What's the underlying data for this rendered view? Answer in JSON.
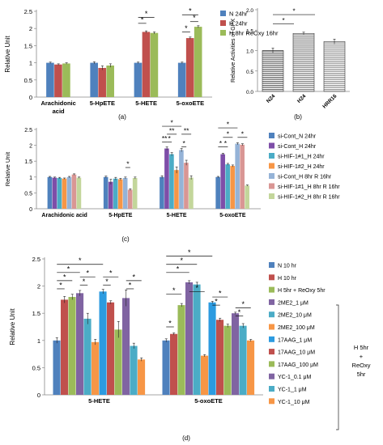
{
  "chart_data": [
    {
      "panel": "(a)",
      "type": "bar",
      "ylabel": "Relative Unit",
      "ylim": [
        0,
        2.5
      ],
      "yticks": [
        0,
        0.5,
        1,
        1.5,
        2,
        2.5
      ],
      "categories": [
        "Arachidonic acid",
        "5-HpETE",
        "5-HETE",
        "5-oxoETE"
      ],
      "series": [
        {
          "name": "N 24hr",
          "color": "#4F81BD",
          "values": [
            1.0,
            1.0,
            1.0,
            1.0
          ],
          "errors": [
            0.02,
            0.03,
            0.02,
            0.02
          ]
        },
        {
          "name": "H 24hr",
          "color": "#C0504D",
          "values": [
            0.95,
            0.85,
            1.9,
            1.72
          ],
          "errors": [
            0.02,
            0.06,
            0.03,
            0.03
          ]
        },
        {
          "name": "H 8hr ReOxy 16hr",
          "color": "#9BBB59",
          "values": [
            0.98,
            0.92,
            1.87,
            2.05
          ],
          "errors": [
            0.02,
            0.05,
            0.03,
            0.03
          ]
        }
      ],
      "legend": "right",
      "annotations": [
        {
          "label": "*",
          "category": 2,
          "from": 0,
          "to": 1,
          "level": 2.15
        },
        {
          "label": "*",
          "category": 2,
          "from": 0,
          "to": 2,
          "level": 2.32
        },
        {
          "label": "*",
          "category": 3,
          "from": 0,
          "to": 1,
          "level": 1.9
        },
        {
          "label": "*",
          "category": 3,
          "from": 1,
          "to": 2,
          "level": 2.2
        },
        {
          "label": "*",
          "category": 3,
          "from": 0,
          "to": 2,
          "level": 2.4
        }
      ]
    },
    {
      "panel": "(b)",
      "type": "bar",
      "ylabel": "Relative Activities of GPX",
      "ylim": [
        0,
        2.0
      ],
      "yticks": [
        0.0,
        0.5,
        1.0,
        1.5,
        2.0
      ],
      "categories": [
        "N24",
        "H24",
        "HRR16"
      ],
      "values": [
        1.0,
        1.42,
        1.22
      ],
      "errors": [
        0.06,
        0.03,
        0.06
      ],
      "annotations": [
        {
          "label": "*",
          "from": 0,
          "to": 1,
          "level": 1.65
        },
        {
          "label": "*",
          "from": 0,
          "to": 2,
          "level": 1.88
        }
      ]
    },
    {
      "panel": "(c)",
      "type": "bar",
      "ylabel": "Relative Unit",
      "ylim": [
        0,
        2.5
      ],
      "yticks": [
        0,
        0.5,
        1,
        1.5,
        2,
        2.5
      ],
      "categories": [
        "Arachidonic acid",
        "5-HpETE",
        "5-HETE",
        "5-oxoETE"
      ],
      "series": [
        {
          "name": "si-Cont_N 24hr",
          "color": "#4F81BD",
          "values": [
            1.0,
            1.0,
            1.0,
            1.0
          ],
          "errors": [
            0.02,
            0.03,
            0.04,
            0.02
          ]
        },
        {
          "name": "si-Cont_H 24hr",
          "color": "#7E4EA8",
          "values": [
            0.98,
            0.85,
            1.9,
            1.72
          ],
          "errors": [
            0.02,
            0.08,
            0.05,
            0.03
          ]
        },
        {
          "name": "si-HIF-1#1_H 24hr",
          "color": "#4BACC6",
          "values": [
            0.97,
            0.95,
            1.72,
            1.4
          ],
          "errors": [
            0.02,
            0.04,
            0.05,
            0.03
          ]
        },
        {
          "name": "si-HIF-1#2_H 24hr",
          "color": "#F79646",
          "values": [
            0.95,
            0.93,
            1.22,
            1.35
          ],
          "errors": [
            0.02,
            0.03,
            0.1,
            0.03
          ]
        },
        {
          "name": "si-Cont_H 8hr R 16hr",
          "color": "#95B3D7",
          "values": [
            1.0,
            0.97,
            1.85,
            2.05
          ],
          "errors": [
            0.02,
            0.03,
            0.05,
            0.03
          ]
        },
        {
          "name": "si-HIF-1#1_H 8hr R 16hr",
          "color": "#D99694",
          "values": [
            1.08,
            0.6,
            1.45,
            2.02
          ],
          "errors": [
            0.02,
            0.03,
            0.08,
            0.03
          ]
        },
        {
          "name": "si-HIF-1#2_H 8hr R 16hr",
          "color": "#C3D69B",
          "values": [
            0.98,
            0.97,
            0.98,
            0.73
          ],
          "errors": [
            0.02,
            0.03,
            0.06,
            0.02
          ]
        }
      ],
      "legend": "right",
      "annotations": [
        {
          "label": "*",
          "category": 1,
          "from": 4,
          "to": 5,
          "level": 1.3
        },
        {
          "label": "**",
          "category": 2,
          "from": 0,
          "to": 1,
          "level": 2.1
        },
        {
          "label": "*",
          "category": 2,
          "from": 1,
          "to": 2,
          "level": 2.1
        },
        {
          "label": "**",
          "category": 2,
          "from": 1,
          "to": 3,
          "level": 2.35
        },
        {
          "label": "*",
          "category": 2,
          "from": 4,
          "to": 5,
          "level": 1.95
        },
        {
          "label": "**",
          "category": 2,
          "from": 4,
          "to": 6,
          "level": 2.35
        },
        {
          "label": "*",
          "category": 2,
          "from": 0,
          "to": 4,
          "level": 2.6
        },
        {
          "label": "*",
          "category": 3,
          "from": 0,
          "to": 1,
          "level": 1.95
        },
        {
          "label": "*",
          "category": 3,
          "from": 1,
          "to": 2,
          "level": 1.95
        },
        {
          "label": "*",
          "category": 3,
          "from": 1,
          "to": 3,
          "level": 2.25
        },
        {
          "label": "*",
          "category": 3,
          "from": 4,
          "to": 6,
          "level": 2.25
        },
        {
          "label": "*",
          "category": 3,
          "from": 0,
          "to": 4,
          "level": 2.55
        }
      ]
    },
    {
      "panel": "(d)",
      "type": "bar",
      "ylabel": "Relative Unit",
      "ylim": [
        0,
        2.5
      ],
      "yticks": [
        0,
        0.5,
        1,
        1.5,
        2,
        2.5
      ],
      "categories": [
        "5-HETE",
        "5-oxoETE"
      ],
      "series": [
        {
          "name": "N 10 hr",
          "color": "#4F81BD",
          "values": [
            1.0,
            1.0
          ],
          "errors": [
            0.05,
            0.03
          ]
        },
        {
          "name": "H 10 hr",
          "color": "#C0504D",
          "values": [
            1.75,
            1.12
          ],
          "errors": [
            0.06,
            0.02
          ]
        },
        {
          "name": "H 5hr + ReOxy 5hr",
          "color": "#9BBB59",
          "values": [
            1.8,
            1.65
          ],
          "errors": [
            0.05,
            0.03
          ]
        },
        {
          "name": "2ME2_1 μM",
          "color": "#8064A2",
          "values": [
            1.87,
            2.07
          ],
          "errors": [
            0.05,
            0.03
          ]
        },
        {
          "name": "2ME2_10 μM",
          "color": "#4BACC6",
          "values": [
            1.4,
            2.03
          ],
          "errors": [
            0.1,
            0.04
          ]
        },
        {
          "name": "2ME2_100 μM",
          "color": "#F79646",
          "values": [
            0.97,
            0.72
          ],
          "errors": [
            0.05,
            0.02
          ]
        },
        {
          "name": "17AAG_1 μM",
          "color": "#2C9BE0",
          "values": [
            1.9,
            1.7
          ],
          "errors": [
            0.04,
            0.02
          ]
        },
        {
          "name": "17AAG_10 μM",
          "color": "#C0504D",
          "values": [
            1.7,
            1.38
          ],
          "errors": [
            0.03,
            0.03
          ]
        },
        {
          "name": "17AAG_100 μM",
          "color": "#9BBB59",
          "values": [
            1.2,
            1.27
          ],
          "errors": [
            0.15,
            0.03
          ]
        },
        {
          "name": "YC-1_0.1 μM",
          "color": "#8064A2",
          "values": [
            1.78,
            1.5
          ],
          "errors": [
            0.15,
            0.02
          ]
        },
        {
          "name": "YC-1_1 μM",
          "color": "#4BACC6",
          "values": [
            0.9,
            1.27
          ],
          "errors": [
            0.05,
            0.04
          ]
        },
        {
          "name": "YC-1_10 μM",
          "color": "#F79646",
          "values": [
            0.65,
            1.0
          ],
          "errors": [
            0.03,
            0.02
          ]
        }
      ],
      "legend": "right",
      "bracket_label": [
        "H 5hr",
        "+",
        "ReOxy",
        "5hr"
      ],
      "annotations": [
        {
          "label": "*",
          "category": 0,
          "from": 0,
          "to": 1,
          "level": 1.95
        },
        {
          "label": "*",
          "category": 0,
          "from": 0,
          "to": 2,
          "level": 2.1
        },
        {
          "label": "*",
          "category": 0,
          "from": 0,
          "to": 3,
          "level": 2.25
        },
        {
          "label": "*",
          "category": 0,
          "from": 0,
          "to": 6,
          "level": 2.4
        },
        {
          "label": "*",
          "category": 0,
          "from": 3,
          "to": 4,
          "level": 2.02
        },
        {
          "label": "*",
          "category": 0,
          "from": 3,
          "to": 5,
          "level": 2.17
        },
        {
          "label": "*",
          "category": 0,
          "from": 6,
          "to": 7,
          "level": 2.02
        },
        {
          "label": "*",
          "category": 0,
          "from": 6,
          "to": 8,
          "level": 2.17
        },
        {
          "label": "*",
          "category": 0,
          "from": 9,
          "to": 10,
          "level": 1.95
        },
        {
          "label": "*",
          "category": 0,
          "from": 9,
          "to": 11,
          "level": 2.1
        },
        {
          "label": "*",
          "category": 1,
          "from": 0,
          "to": 1,
          "level": 1.25
        },
        {
          "label": "*",
          "category": 1,
          "from": 0,
          "to": 2,
          "level": 1.85
        },
        {
          "label": "*",
          "category": 1,
          "from": 0,
          "to": 3,
          "level": 2.25
        },
        {
          "label": "*",
          "category": 1,
          "from": 0,
          "to": 4,
          "level": 2.4
        },
        {
          "label": "*",
          "category": 1,
          "from": 0,
          "to": 6,
          "level": 2.55
        },
        {
          "label": "*",
          "category": 1,
          "from": 3,
          "to": 5,
          "level": 1.9
        },
        {
          "label": "*",
          "category": 1,
          "from": 6,
          "to": 7,
          "level": 1.65
        },
        {
          "label": "*",
          "category": 1,
          "from": 6,
          "to": 8,
          "level": 1.8
        },
        {
          "label": "*",
          "category": 1,
          "from": 9,
          "to": 10,
          "level": 1.45
        },
        {
          "label": "*",
          "category": 1,
          "from": 9,
          "to": 11,
          "level": 1.6
        }
      ]
    }
  ]
}
